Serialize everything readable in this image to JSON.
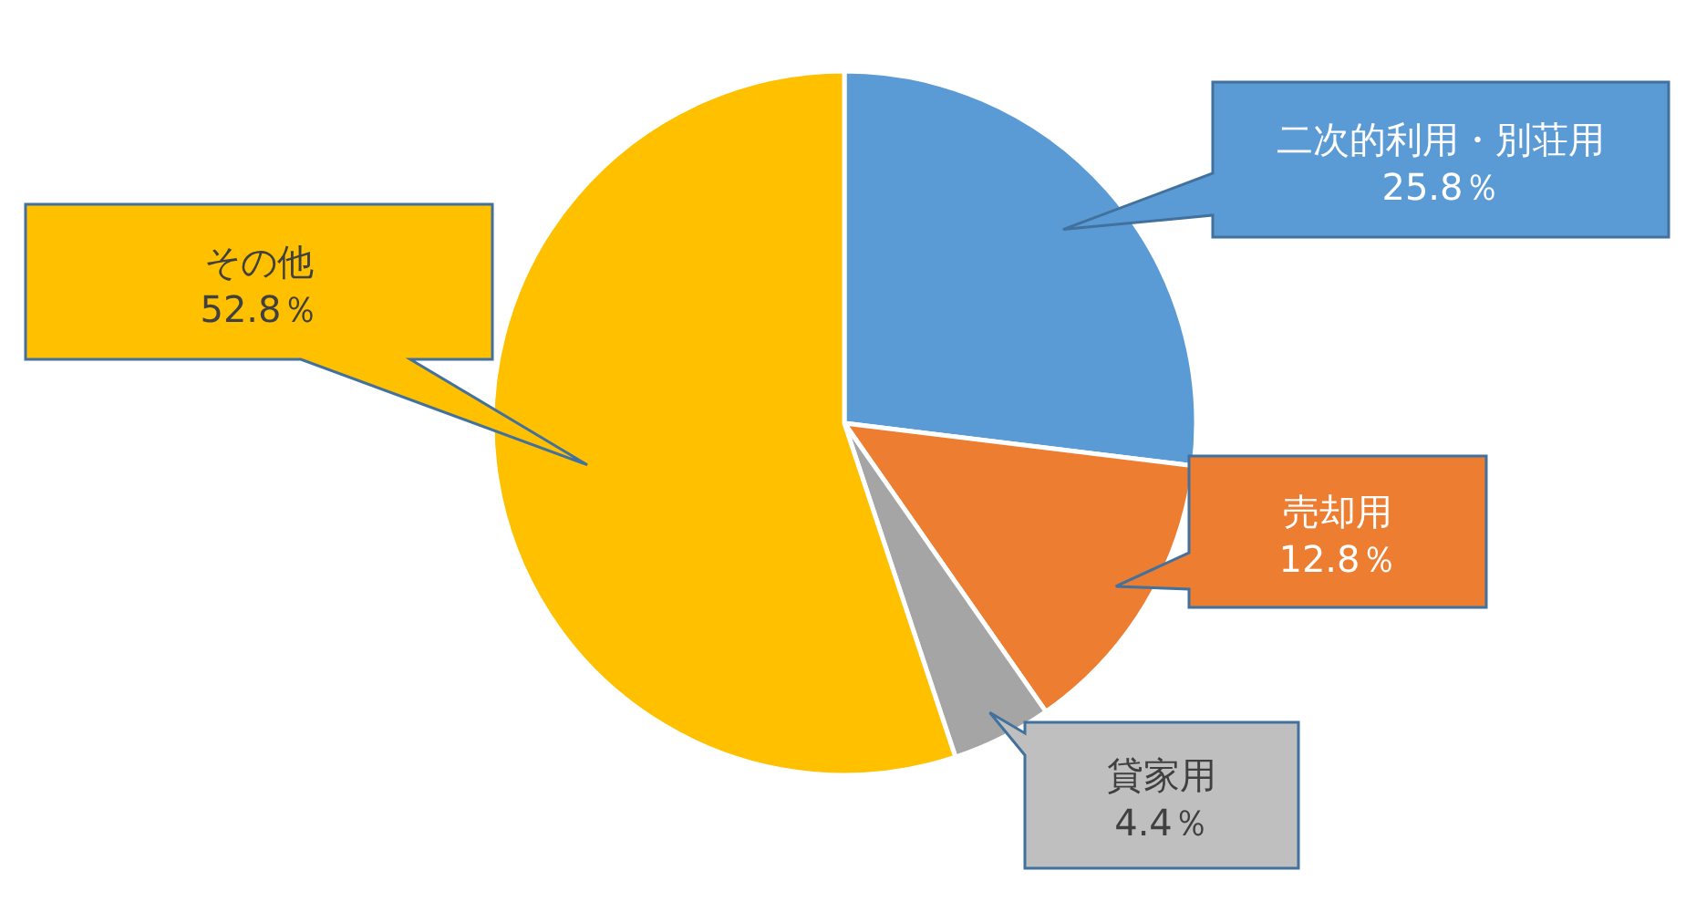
{
  "chart_data": {
    "type": "pie",
    "categories": [
      "二次的利用・別荘用",
      "売却用",
      "貸家用",
      "その他"
    ],
    "values": [
      25.8,
      12.8,
      4.4,
      52.8
    ],
    "value_labels": [
      "25.8％",
      "12.8％",
      "4.4％",
      "52.8％"
    ],
    "colors": [
      "#5b9bd5",
      "#ed7d31",
      "#a5a5a5",
      "#ffc000"
    ],
    "legend": false
  }
}
